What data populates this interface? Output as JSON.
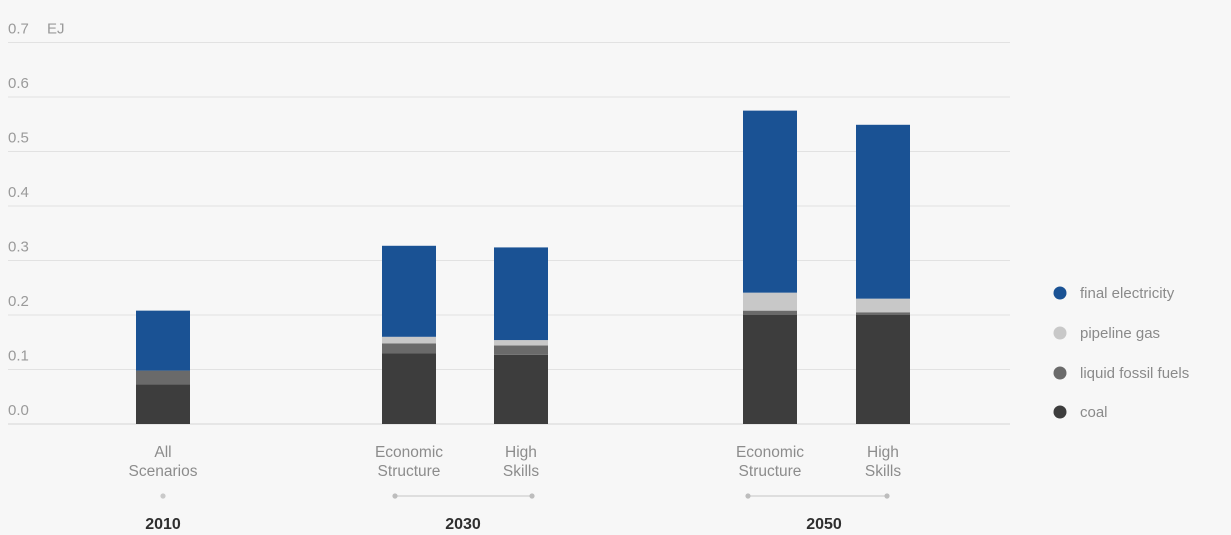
{
  "chart_data": {
    "type": "bar",
    "stacked": true,
    "unit": "EJ",
    "ylim": [
      0,
      0.7
    ],
    "yticks": [
      "0.0",
      "0.1",
      "0.2",
      "0.3",
      "0.4",
      "0.5",
      "0.6",
      "0.7"
    ],
    "grid": true,
    "legend_position": "right",
    "groups": [
      {
        "year": "2010",
        "categories": [
          [
            "All",
            "Scenarios"
          ]
        ]
      },
      {
        "year": "2030",
        "categories": [
          [
            "Economic",
            "Structure"
          ],
          [
            "High",
            "Skills"
          ]
        ]
      },
      {
        "year": "2050",
        "categories": [
          [
            "Economic",
            "Structure"
          ],
          [
            "High",
            "Skills"
          ]
        ]
      }
    ],
    "series": [
      {
        "name": "coal",
        "color": "#3d3d3d",
        "values": [
          0.073,
          0.13,
          0.127,
          0.2,
          0.2
        ]
      },
      {
        "name": "liquid fossil fuels",
        "color": "#6a6a6a",
        "values": [
          0.025,
          0.018,
          0.017,
          0.008,
          0.005
        ]
      },
      {
        "name": "pipeline gas",
        "color": "#c8c8c8",
        "values": [
          0.0,
          0.012,
          0.01,
          0.033,
          0.025
        ]
      },
      {
        "name": "final electricity",
        "color": "#1a5294",
        "values": [
          0.11,
          0.167,
          0.17,
          0.334,
          0.319
        ]
      }
    ]
  }
}
